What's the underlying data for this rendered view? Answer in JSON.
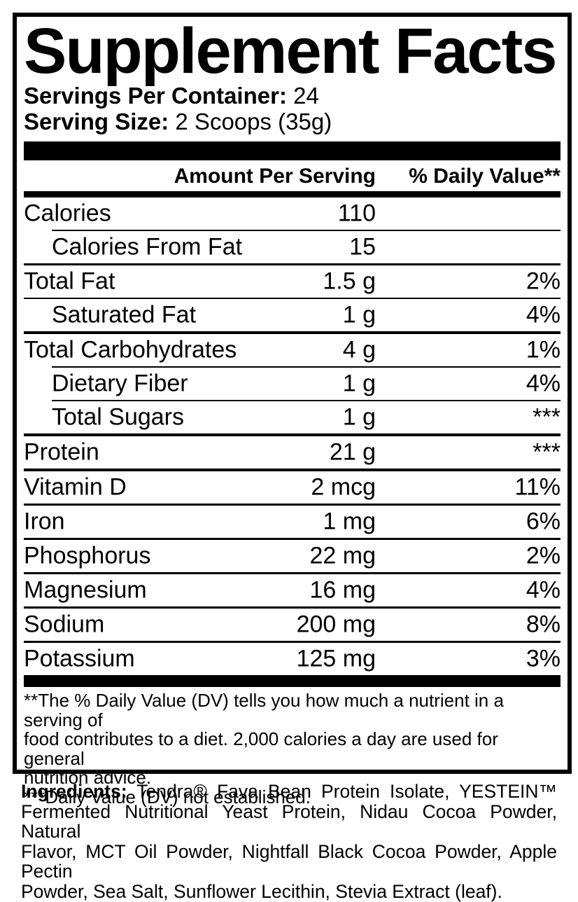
{
  "colors": {
    "text": "#000000",
    "background": "#ffffff"
  },
  "label": {
    "title": "Supplement Facts",
    "servings_per_container": {
      "label": "Servings Per Container:",
      "value": "24"
    },
    "serving_size": {
      "label": "Serving Size:",
      "value": "2 Scoops (35g)"
    },
    "table": {
      "amount_header": "Amount Per Serving",
      "dv_header": "% Daily Value**",
      "rows": [
        {
          "name": "Calories",
          "amount": "110",
          "dv": "",
          "indent": false,
          "divider": "none"
        },
        {
          "name": "Calories From Fat",
          "amount": "15",
          "dv": "",
          "indent": true,
          "divider": "thin_indent"
        },
        {
          "name": "Total Fat",
          "amount": "1.5 g",
          "dv": "2%",
          "indent": false,
          "divider": "med"
        },
        {
          "name": "Saturated Fat",
          "amount": "1 g",
          "dv": "4%",
          "indent": true,
          "divider": "thin"
        },
        {
          "name": "Total Carbohydrates",
          "amount": "4 g",
          "dv": "1%",
          "indent": false,
          "divider": "thick"
        },
        {
          "name": "Dietary Fiber",
          "amount": "1 g",
          "dv": "4%",
          "indent": true,
          "divider": "thin_indent"
        },
        {
          "name": "Total Sugars",
          "amount": "1 g",
          "dv": "***",
          "indent": true,
          "divider": "thin_indent"
        },
        {
          "name": "Protein",
          "amount": "21 g",
          "dv": "***",
          "indent": false,
          "divider": "thick"
        },
        {
          "name": "Vitamin D",
          "amount": "2 mcg",
          "dv": "11%",
          "indent": false,
          "divider": "thick"
        },
        {
          "name": "Iron",
          "amount": "1 mg",
          "dv": "6%",
          "indent": false,
          "divider": "med"
        },
        {
          "name": "Phosphorus",
          "amount": "22 mg",
          "dv": "2%",
          "indent": false,
          "divider": "med"
        },
        {
          "name": "Magnesium",
          "amount": "16 mg",
          "dv": "4%",
          "indent": false,
          "divider": "med"
        },
        {
          "name": "Sodium",
          "amount": "200 mg",
          "dv": "8%",
          "indent": false,
          "divider": "med"
        },
        {
          "name": "Potassium",
          "amount": "125 mg",
          "dv": "3%",
          "indent": false,
          "divider": "med"
        }
      ]
    },
    "footnotes": {
      "lines": [
        "**The % Daily Value (DV) tells you how much a nutrient in a serving of",
        "food contributes to a diet. 2,000 calories a day are used for general",
        "nutrition advice.",
        "***Daily Value (DV) not established."
      ]
    }
  },
  "ingredients": {
    "label": "Ingredients:",
    "lines": [
      "Tendra® Fava Bean Protein Isolate, YESTEIN™",
      "Fermented Nutritional Yeast Protein, Nidau Cocoa Powder, Natural",
      "Flavor, MCT Oil Powder, Nightfall Black Cocoa Powder, Apple Pectin",
      "Powder, Sea Salt, Sunflower Lecithin, Stevia Extract (leaf)."
    ]
  }
}
